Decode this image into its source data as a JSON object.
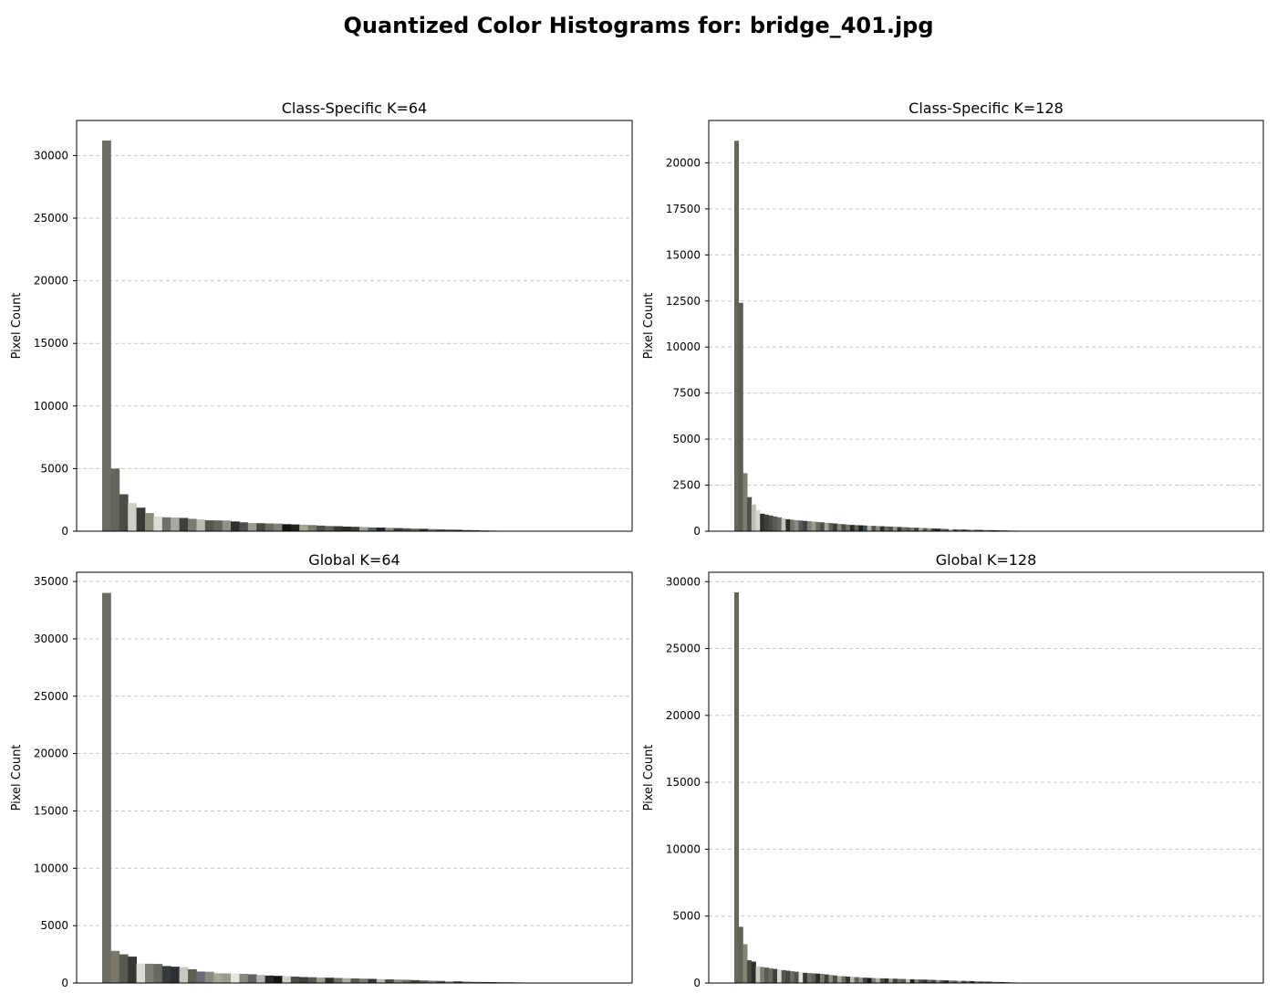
{
  "figure_title": "Quantized Color Histograms for: bridge_401.jpg",
  "chart_data": [
    {
      "type": "bar",
      "title": "Class-Specific K=64",
      "xlabel": "",
      "ylabel": "Pixel Count",
      "ylim": [
        0,
        32800
      ],
      "yticks": [
        0,
        5000,
        10000,
        15000,
        20000,
        25000,
        30000
      ],
      "grid": "y",
      "n_slots": 64,
      "values": [
        31200,
        5000,
        2950,
        2250,
        1880,
        1450,
        1180,
        1110,
        1090,
        1060,
        990,
        940,
        870,
        860,
        850,
        780,
        710,
        650,
        640,
        620,
        610,
        560,
        540,
        520,
        490,
        450,
        410,
        400,
        370,
        350,
        330,
        300,
        290,
        270,
        250,
        230,
        210,
        190,
        170,
        150,
        130,
        110,
        90,
        80,
        65,
        50,
        40,
        30,
        20
      ],
      "colors": [
        "#6c6e63",
        "#63655a",
        "#4a4c45",
        "#cfcfc6",
        "#383a35",
        "#8c8b79",
        "#dcdcd6",
        "#6e7069",
        "#a8a9a0",
        "#3f413c",
        "#7a7b72",
        "#b9bab0",
        "#55574f",
        "#646659",
        "#8f9087",
        "#2e302d",
        "#4b4f52",
        "#9b9c92",
        "#474a3f",
        "#6a6c63",
        "#7f8277",
        "#151612",
        "#23251f",
        "#a6a493",
        "#7b7a6a",
        "#4d4f49",
        "#5f6259",
        "#373933",
        "#2c2e28",
        "#3b3d38",
        "#9fa096",
        "#5a6060",
        "#202a2e",
        "#8a8c83",
        "#3d3f3a",
        "#4f514a",
        "#6f6a5a",
        "#2f312c",
        "#73756c",
        "#52544d",
        "#595b54",
        "#1c1d1a",
        "#45473f",
        "#383a35",
        "#62645a",
        "#4e4f48",
        "#3a3c37",
        "#2b2d29",
        "#555750"
      ]
    },
    {
      "type": "bar",
      "title": "Class-Specific K=128",
      "xlabel": "",
      "ylabel": "Pixel Count",
      "ylim": [
        0,
        22300
      ],
      "yticks": [
        0,
        2500,
        5000,
        7500,
        10000,
        12500,
        15000,
        17500,
        20000
      ],
      "grid": "y",
      "n_slots": 128,
      "values": [
        21200,
        12400,
        3150,
        1850,
        1450,
        1150,
        950,
        900,
        850,
        800,
        750,
        700,
        650,
        620,
        600,
        580,
        560,
        540,
        520,
        500,
        480,
        460,
        440,
        420,
        400,
        380,
        360,
        340,
        330,
        320,
        310,
        300,
        290,
        280,
        270,
        260,
        250,
        240,
        230,
        220,
        210,
        200,
        190,
        180,
        170,
        160,
        150,
        140,
        130,
        120,
        110,
        100,
        95,
        90,
        85,
        80,
        75,
        70,
        65,
        60,
        55,
        50,
        45,
        40,
        35,
        30,
        25,
        20,
        15,
        10
      ],
      "colors": [
        "#65665a",
        "#5d5f55",
        "#7b7d71",
        "#505249",
        "#bdbdb3",
        "#d6d6ce",
        "#2f312c",
        "#3d3f39",
        "#4a4c46",
        "#5a5c55",
        "#676a62",
        "#c4c5bc",
        "#2b2d29",
        "#6f7166",
        "#8c8e84",
        "#56585a",
        "#3e4145",
        "#7e8074",
        "#9a9b91",
        "#6a6d64",
        "#4d4f48",
        "#a3a498",
        "#5e6057",
        "#3a3c37",
        "#868879",
        "#494b44",
        "#73756b",
        "#2a2c27",
        "#606258",
        "#1e201c",
        "#3f4e55",
        "#b1b2a8",
        "#555750",
        "#8b8d82",
        "#2d2f2a",
        "#6b6d63",
        "#4c4e48",
        "#999a8e",
        "#34363a",
        "#707268",
        "#5a5c53",
        "#7c7d72",
        "#424440",
        "#a5a69b",
        "#5b5d54",
        "#8e8f84",
        "#3b3d38",
        "#26282a",
        "#696b61",
        "#51534c",
        "#bcbdb3",
        "#46484a",
        "#7a7c71",
        "#323431",
        "#63655c",
        "#9c9d92",
        "#4e5049",
        "#2c2e30",
        "#787a6f",
        "#575952",
        "#1d1f1b",
        "#3c3e3a",
        "#6e7066",
        "#4a4c45",
        "#858679",
        "#38393b",
        "#5f6159",
        "#2e302b",
        "#46483f",
        "#5c5e57"
      ]
    },
    {
      "type": "bar",
      "title": "Global K=64",
      "xlabel": "",
      "ylabel": "Pixel Count",
      "ylim": [
        0,
        35800
      ],
      "yticks": [
        0,
        5000,
        10000,
        15000,
        20000,
        25000,
        30000,
        35000
      ],
      "grid": "y",
      "n_slots": 64,
      "values": [
        34000,
        2800,
        2500,
        2300,
        1700,
        1680,
        1660,
        1480,
        1420,
        1380,
        1200,
        1000,
        980,
        850,
        840,
        830,
        800,
        760,
        700,
        650,
        620,
        600,
        560,
        520,
        500,
        480,
        460,
        440,
        420,
        400,
        380,
        360,
        340,
        320,
        300,
        280,
        250,
        220,
        200,
        180,
        160,
        140,
        120,
        100,
        90,
        80,
        70,
        60,
        50,
        40
      ],
      "colors": [
        "#6b6d63",
        "#7a7768",
        "#58594f",
        "#353734",
        "#dcdcd5",
        "#7c7e76",
        "#676960",
        "#383b3e",
        "#2c2f33",
        "#c8c8c0",
        "#5e6150",
        "#6b6e7a",
        "#898a80",
        "#a8a695",
        "#9b9b8a",
        "#e5e5df",
        "#878880",
        "#5f6165",
        "#b3b4ad",
        "#2a2b29",
        "#141512",
        "#d0d0c9",
        "#4b4d46",
        "#3d3f3a",
        "#56574f",
        "#a09d8b",
        "#2d2f2b",
        "#6c6e63",
        "#a9aaa2",
        "#555751",
        "#797b72",
        "#2e3439",
        "#b6b7ae",
        "#4a4c44",
        "#8c8d84",
        "#6a6d5e",
        "#3f413b",
        "#5c5e58",
        "#6f7a6c",
        "#51534d",
        "#9d9e94",
        "#333530",
        "#777970",
        "#61635a",
        "#484a45",
        "#2a2c29",
        "#6d6f65",
        "#3c3e39",
        "#55574f",
        "#1e201c"
      ]
    },
    {
      "type": "bar",
      "title": "Global K=128",
      "xlabel": "",
      "ylabel": "Pixel Count",
      "ylim": [
        0,
        30700
      ],
      "yticks": [
        0,
        5000,
        10000,
        15000,
        20000,
        25000,
        30000
      ],
      "grid": "y",
      "n_slots": 128,
      "values": [
        29200,
        4200,
        2900,
        1700,
        1600,
        1250,
        1200,
        1150,
        1100,
        1050,
        1000,
        960,
        920,
        880,
        840,
        800,
        760,
        740,
        720,
        700,
        680,
        640,
        600,
        560,
        520,
        500,
        480,
        460,
        440,
        420,
        400,
        380,
        370,
        360,
        350,
        340,
        330,
        320,
        310,
        300,
        290,
        280,
        270,
        260,
        250,
        240,
        230,
        220,
        210,
        200,
        190,
        180,
        170,
        160,
        150,
        140,
        130,
        120,
        110,
        100,
        90,
        80,
        70,
        60,
        50,
        40,
        30,
        20
      ],
      "colors": [
        "#66665b",
        "#626457",
        "#85836f",
        "#484a43",
        "#2d2f2a",
        "#cacac2",
        "#7b7d73",
        "#5a5c54",
        "#6a6c62",
        "#3d3f3a",
        "#d9d9d2",
        "#55574e",
        "#454743",
        "#6b6e68",
        "#4f514b",
        "#e2e2dc",
        "#34363a",
        "#707266",
        "#5c5f57",
        "#2a2c27",
        "#7a7c70",
        "#3e4040",
        "#898b82",
        "#4b4d47",
        "#a5a69c",
        "#676a61",
        "#31332f",
        "#b9bab0",
        "#5f6159",
        "#8d8e85",
        "#424441",
        "#18191a",
        "#7a7c72",
        "#b0b1a8",
        "#4e504a",
        "#2b2d2a",
        "#9c9d93",
        "#3b3e40",
        "#6d6f66",
        "#575951",
        "#c0c1b8",
        "#1f211d",
        "#828478",
        "#4a4c46",
        "#333533",
        "#67695f",
        "#3f4140",
        "#909186",
        "#52544d",
        "#2d2f2c",
        "#7c7e75",
        "#595b53",
        "#a0a197",
        "#404241",
        "#6f7167",
        "#27292a",
        "#898a80",
        "#4d4f48",
        "#626459",
        "#343633",
        "#787a70",
        "#55574f",
        "#1c1e1b",
        "#3e403b",
        "#6b6d62",
        "#47494a",
        "#5d5f56",
        "#2f312d"
      ]
    }
  ]
}
